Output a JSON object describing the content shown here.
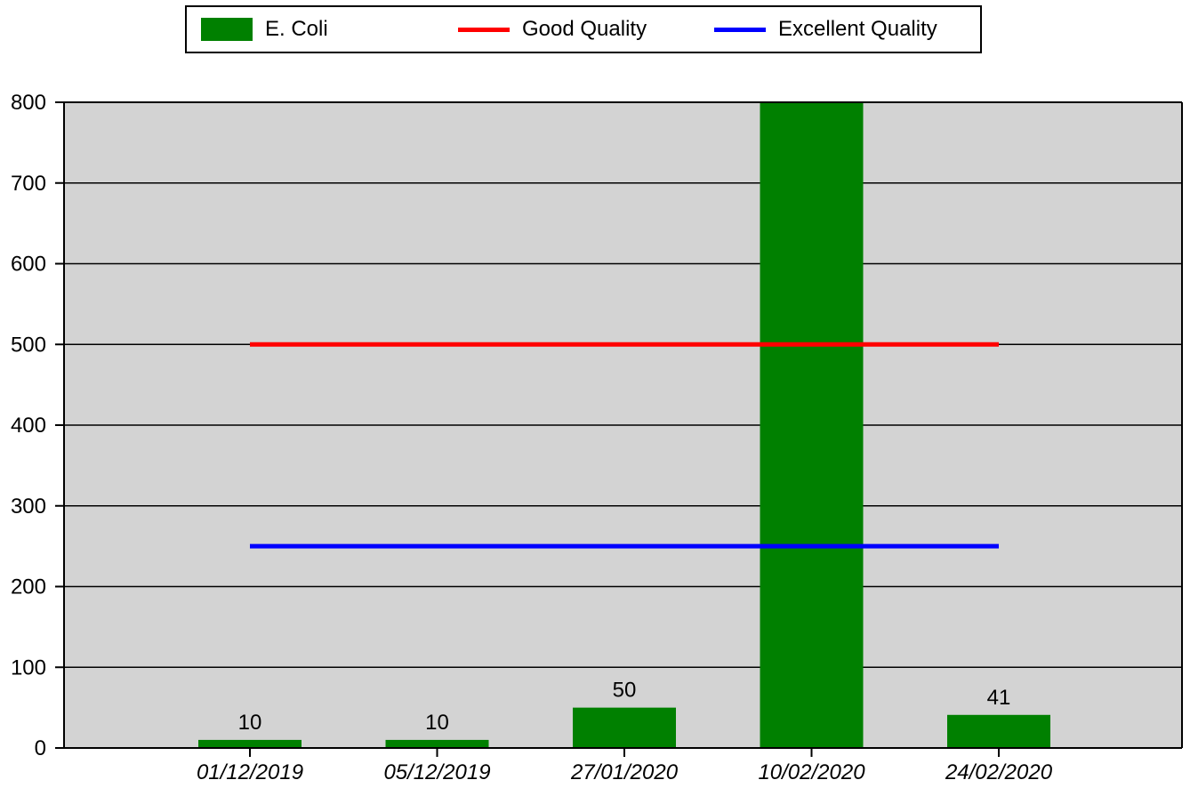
{
  "chart_data": {
    "type": "bar",
    "categories": [
      "01/12/2019",
      "05/12/2019",
      "27/01/2020",
      "10/02/2020",
      "24/02/2020"
    ],
    "series": [
      {
        "name": "E. Coli",
        "type": "bar",
        "values": [
          10,
          10,
          50,
          800,
          41
        ],
        "labels": [
          "10",
          "10",
          "50",
          "",
          "41"
        ],
        "color": "#008000"
      },
      {
        "name": "Good Quality",
        "type": "line",
        "values": [
          500,
          500,
          500,
          500,
          500
        ],
        "color": "#ff0000"
      },
      {
        "name": "Excellent Quality",
        "type": "line",
        "values": [
          250,
          250,
          250,
          250,
          250
        ],
        "color": "#0000ff"
      }
    ],
    "ylim": [
      0,
      800
    ],
    "yticks": [
      0,
      100,
      200,
      300,
      400,
      500,
      600,
      700,
      800
    ],
    "grid": true,
    "legend_position": "top",
    "plot_background": "#d3d3d3"
  },
  "legend": {
    "items": [
      {
        "label": "E. Coli",
        "color": "#008000",
        "kind": "bar"
      },
      {
        "label": "Good Quality",
        "color": "#ff0000",
        "kind": "line"
      },
      {
        "label": "Excellent Quality",
        "color": "#0000ff",
        "kind": "line"
      }
    ]
  }
}
